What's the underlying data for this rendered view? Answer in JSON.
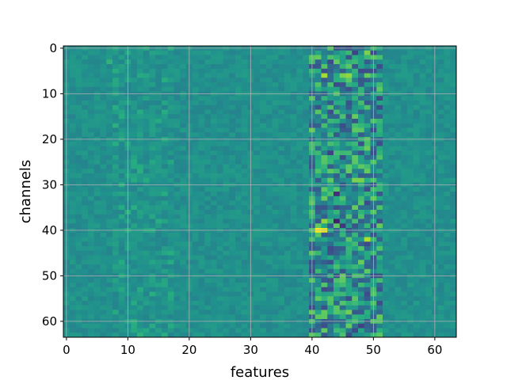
{
  "chart_data": {
    "type": "heatmap",
    "title": "",
    "xlabel": "features",
    "ylabel": "channels",
    "n_cols": 64,
    "n_rows": 64,
    "xlim": [
      -0.5,
      63.5
    ],
    "ylim": [
      63.5,
      -0.5
    ],
    "x_ticks": [
      0,
      10,
      20,
      30,
      40,
      50,
      60
    ],
    "y_ticks": [
      0,
      10,
      20,
      30,
      40,
      50,
      60
    ],
    "grid": true,
    "colormap": "viridis",
    "colors": {
      "low": "#440154",
      "base": "#3b5d8e",
      "mid": "#21918c",
      "high": "#5ec962",
      "max": "#fde725",
      "grid": "#b0b0b0"
    },
    "value_range": [
      -3,
      3
    ],
    "background_level": 0,
    "highlights": [
      {
        "row": 40,
        "col": 41,
        "value": 3.0
      },
      {
        "row": 40,
        "col": 42,
        "value": 2.8
      },
      {
        "row": 6,
        "col": 42,
        "value": 2.2
      },
      {
        "row": 6,
        "col": 46,
        "value": 2.0
      },
      {
        "row": 6,
        "col": 45,
        "value": 1.8
      },
      {
        "row": 1,
        "col": 49,
        "value": 1.8
      },
      {
        "row": 42,
        "col": 49,
        "value": 2.3
      },
      {
        "row": 38,
        "col": 42,
        "value": 2.0
      },
      {
        "row": 29,
        "col": 47,
        "value": 1.8
      },
      {
        "row": 29,
        "col": 48,
        "value": 1.8
      },
      {
        "row": 15,
        "col": 47,
        "value": 1.6
      },
      {
        "row": 22,
        "col": 49,
        "value": 1.6
      },
      {
        "row": 26,
        "col": 46,
        "value": 1.5
      },
      {
        "row": 50,
        "col": 45,
        "value": 1.6
      },
      {
        "row": 49,
        "col": 49,
        "value": 1.5
      },
      {
        "row": 58,
        "col": 46,
        "value": 1.7
      },
      {
        "row": 55,
        "col": 43,
        "value": 1.4
      },
      {
        "row": 35,
        "col": 51,
        "value": 1.3
      },
      {
        "row": 3,
        "col": 40,
        "value": 1.2
      },
      {
        "row": 2,
        "col": 51,
        "value": 1.2
      },
      {
        "row": 3,
        "col": 7,
        "value": 0.9
      },
      {
        "row": 17,
        "col": 8,
        "value": 0.8
      },
      {
        "row": 36,
        "col": 10,
        "value": 0.8
      },
      {
        "row": 63,
        "col": 12,
        "value": 0.9
      },
      {
        "row": 60,
        "col": 11,
        "value": 0.8
      },
      {
        "row": 38,
        "col": 44,
        "value": -2.5
      },
      {
        "row": 32,
        "col": 44,
        "value": -2.2
      },
      {
        "row": 39,
        "col": 45,
        "value": -2.0
      },
      {
        "row": 23,
        "col": 43,
        "value": -1.8
      },
      {
        "row": 1,
        "col": 47,
        "value": -1.8
      },
      {
        "row": 61,
        "col": 48,
        "value": -1.8
      },
      {
        "row": 8,
        "col": 44,
        "value": -1.6
      },
      {
        "row": 44,
        "col": 43,
        "value": -1.6
      },
      {
        "row": 53,
        "col": 42,
        "value": -1.6
      }
    ]
  }
}
